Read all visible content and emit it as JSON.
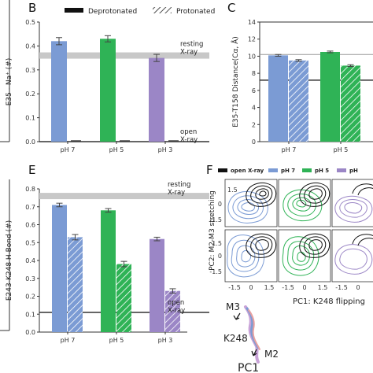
{
  "colors": {
    "ph7": "#7b9bd4",
    "ph5": "#2fb356",
    "ph3": "#9b86c6",
    "grey_band": "#c8c8c8",
    "dark_line": "#333333"
  },
  "panels": {
    "B": "B",
    "C": "C",
    "E": "E",
    "F": "F"
  },
  "chart_data": [
    {
      "panel": "B",
      "type": "bar",
      "legend": [
        "Deprotonated",
        "Protonated"
      ],
      "ylabel": "E35 - Na⁺ (#)",
      "ylim": [
        0,
        0.5
      ],
      "yticks": [
        "0.0",
        "0.1",
        "0.2",
        "0.3",
        "0.4",
        "0.5"
      ],
      "categories": [
        "pH 7",
        "pH 5",
        "pH 3"
      ],
      "series": [
        {
          "name": "Deprotonated",
          "values": [
            0.42,
            0.43,
            0.35
          ],
          "errors": [
            0.015,
            0.013,
            0.015
          ]
        },
        {
          "name": "Protonated",
          "values": [
            0.0,
            0.0,
            0.0
          ],
          "errors": [
            0,
            0,
            0
          ]
        }
      ],
      "reference_lines": [
        {
          "label": "resting\nX-ray",
          "value": 0.36,
          "style": "grey band"
        },
        {
          "label": "open\nX-ray",
          "value": 0.0,
          "style": "dark line"
        }
      ]
    },
    {
      "panel": "C",
      "type": "bar",
      "ylabel": "E35-T158 Distance(Cα, Å)",
      "ylim": [
        0,
        14
      ],
      "yticks": [
        "0",
        "2",
        "4",
        "6",
        "8",
        "10",
        "12",
        "14"
      ],
      "categories": [
        "pH 7",
        "pH 5"
      ],
      "series": [
        {
          "name": "Deprotonated",
          "values": [
            10.1,
            10.5
          ],
          "errors": [
            0.1,
            0.1
          ]
        },
        {
          "name": "Protonated",
          "values": [
            9.5,
            8.9
          ],
          "errors": [
            0.1,
            0.1
          ]
        }
      ],
      "reference_lines": [
        {
          "value": 10.2,
          "style": "grey line"
        },
        {
          "value": 7.2,
          "style": "dark line"
        }
      ]
    },
    {
      "panel": "E",
      "type": "bar",
      "ylabel": "E243-K248 H-Bond (#)",
      "ylim": [
        0,
        0.8
      ],
      "yticks": [
        "0.0",
        "0.1",
        "0.2",
        "0.3",
        "0.4",
        "0.5",
        "0.6",
        "0.7",
        "0.8"
      ],
      "categories": [
        "pH 7",
        "pH 5",
        "pH 3"
      ],
      "series": [
        {
          "name": "Deprotonated",
          "values": [
            0.71,
            0.68,
            0.52
          ],
          "errors": [
            0.01,
            0.01,
            0.01
          ]
        },
        {
          "name": "Protonated",
          "values": [
            0.53,
            0.38,
            0.23
          ],
          "errors": [
            0.015,
            0.015,
            0.012
          ]
        }
      ],
      "reference_lines": [
        {
          "label": "resting\nX-ray",
          "value": 0.76,
          "style": "grey band"
        },
        {
          "label": "open\nX-ray",
          "value": 0.11,
          "style": "dark line"
        }
      ]
    },
    {
      "panel": "F",
      "type": "contour",
      "legend": [
        "open X-ray",
        "pH 7",
        "pH 5",
        "pH"
      ],
      "xlabel": "PC1: K248 flipping",
      "ylabel": "PC2: M2-M3 stretching",
      "xticks": [
        "-1.5",
        "0",
        "1.5"
      ],
      "yticks": [
        "1.5",
        "0",
        "-1.5"
      ],
      "inset_labels": [
        "M3",
        "K248",
        "M2",
        "PC1"
      ]
    }
  ]
}
